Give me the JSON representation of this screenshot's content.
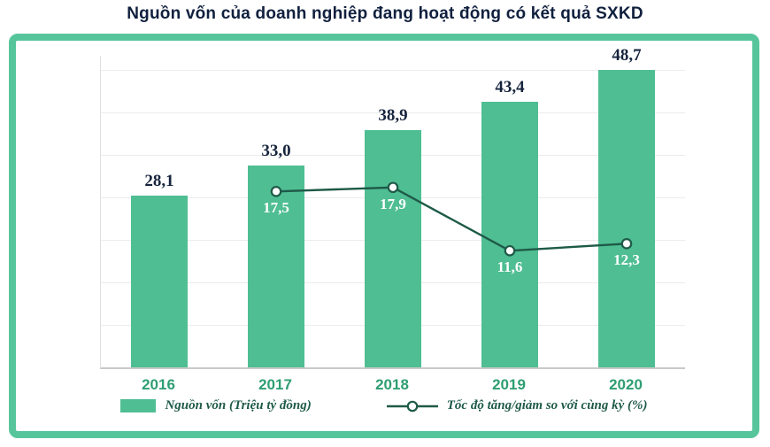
{
  "page": {
    "title": "Nguồn vốn của doanh nghiệp đang hoạt động có kết quả SXKD"
  },
  "colors": {
    "bar_fill": "#4fbe93",
    "frame_border": "#57c59b",
    "line_stroke": "#1e5a48",
    "marker_fill": "#ffffff",
    "bar_value_label": "#16243d",
    "line_value_label": "#ffffff",
    "x_axis_label": "#2e9e72",
    "legend_text": "#1e5a48",
    "gridline": "#ececec",
    "axis_line": "#c9c9c9"
  },
  "legend": {
    "bar_label": "Nguồn vốn (Triệu tỷ đồng)",
    "line_label": "Tốc độ tăng/giảm so với cùng kỳ (%)"
  },
  "chart_data": {
    "type": "bar",
    "title": "Nguồn vốn của doanh nghiệp đang hoạt động có kết quả SXKD",
    "categories": [
      "2016",
      "2017",
      "2018",
      "2019",
      "2020"
    ],
    "series": [
      {
        "name": "Nguồn vốn (Triệu tỷ đồng)",
        "type": "bar",
        "values": [
          28.1,
          33.0,
          38.9,
          43.4,
          48.7
        ],
        "labels": [
          "28,1",
          "33,0",
          "38,9",
          "43,4",
          "48,7"
        ]
      },
      {
        "name": "Tốc độ tăng/giảm so với cùng kỳ (%)",
        "type": "line",
        "values": [
          null,
          17.5,
          17.9,
          11.6,
          12.3
        ],
        "labels": [
          null,
          "17,5",
          "17,9",
          "11,6",
          "12,3"
        ]
      }
    ],
    "bar_axis": {
      "min": 0,
      "max": 51
    },
    "line_axis": {
      "min": 0,
      "max": 31
    },
    "grid": true,
    "legend_position": "bottom"
  }
}
